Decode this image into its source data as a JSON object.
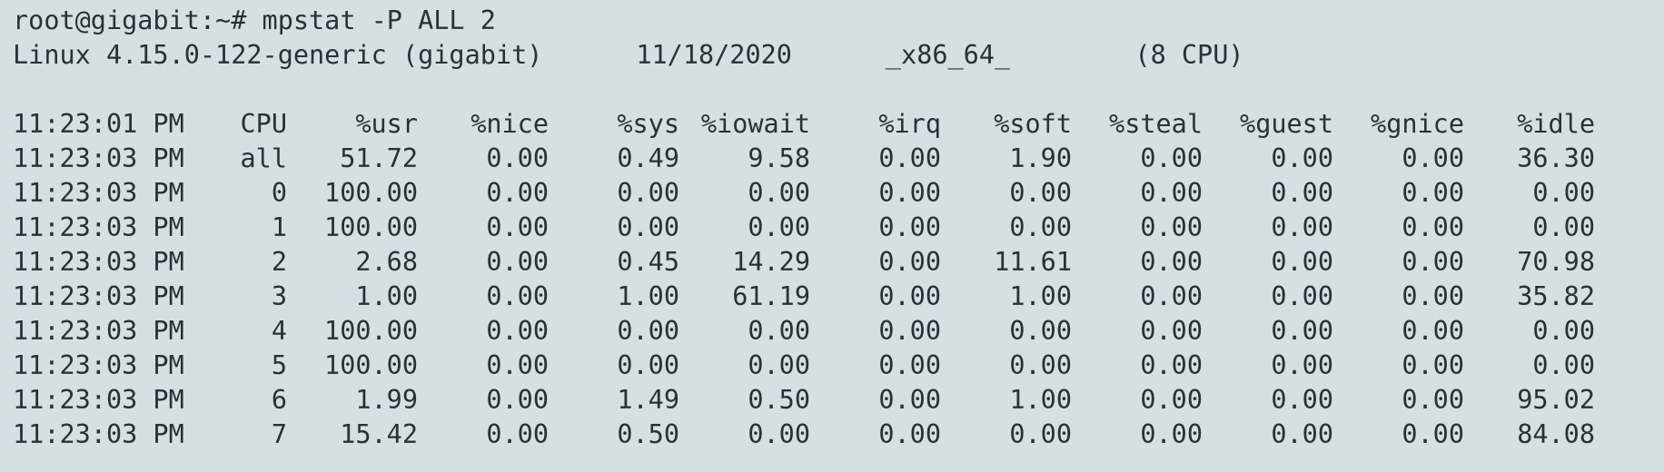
{
  "prompt": "root@gigabit:~# mpstat -P ALL 2",
  "system_info": "Linux 4.15.0-122-generic (gigabit)      11/18/2020      _x86_64_        (8 CPU)",
  "table": {
    "headers": [
      "11:23:01 PM",
      "CPU",
      "%usr",
      "%nice",
      "%sys",
      "%iowait",
      "%irq",
      "%soft",
      "%steal",
      "%guest",
      "%gnice",
      "%idle"
    ],
    "rows": [
      [
        "11:23:03 PM",
        "all",
        "51.72",
        "0.00",
        "0.49",
        "9.58",
        "0.00",
        "1.90",
        "0.00",
        "0.00",
        "0.00",
        "36.30"
      ],
      [
        "11:23:03 PM",
        "0",
        "100.00",
        "0.00",
        "0.00",
        "0.00",
        "0.00",
        "0.00",
        "0.00",
        "0.00",
        "0.00",
        "0.00"
      ],
      [
        "11:23:03 PM",
        "1",
        "100.00",
        "0.00",
        "0.00",
        "0.00",
        "0.00",
        "0.00",
        "0.00",
        "0.00",
        "0.00",
        "0.00"
      ],
      [
        "11:23:03 PM",
        "2",
        "2.68",
        "0.00",
        "0.45",
        "14.29",
        "0.00",
        "11.61",
        "0.00",
        "0.00",
        "0.00",
        "70.98"
      ],
      [
        "11:23:03 PM",
        "3",
        "1.00",
        "0.00",
        "1.00",
        "61.19",
        "0.00",
        "1.00",
        "0.00",
        "0.00",
        "0.00",
        "35.82"
      ],
      [
        "11:23:03 PM",
        "4",
        "100.00",
        "0.00",
        "0.00",
        "0.00",
        "0.00",
        "0.00",
        "0.00",
        "0.00",
        "0.00",
        "0.00"
      ],
      [
        "11:23:03 PM",
        "5",
        "100.00",
        "0.00",
        "0.00",
        "0.00",
        "0.00",
        "0.00",
        "0.00",
        "0.00",
        "0.00",
        "0.00"
      ],
      [
        "11:23:03 PM",
        "6",
        "1.99",
        "0.00",
        "1.49",
        "0.50",
        "0.00",
        "1.00",
        "0.00",
        "0.00",
        "0.00",
        "95.02"
      ],
      [
        "11:23:03 PM",
        "7",
        "15.42",
        "0.00",
        "0.50",
        "0.00",
        "0.00",
        "0.00",
        "0.00",
        "0.00",
        "0.00",
        "84.08"
      ]
    ]
  },
  "colors": {
    "background": "#d6dfe3",
    "text": "#2b3037"
  }
}
